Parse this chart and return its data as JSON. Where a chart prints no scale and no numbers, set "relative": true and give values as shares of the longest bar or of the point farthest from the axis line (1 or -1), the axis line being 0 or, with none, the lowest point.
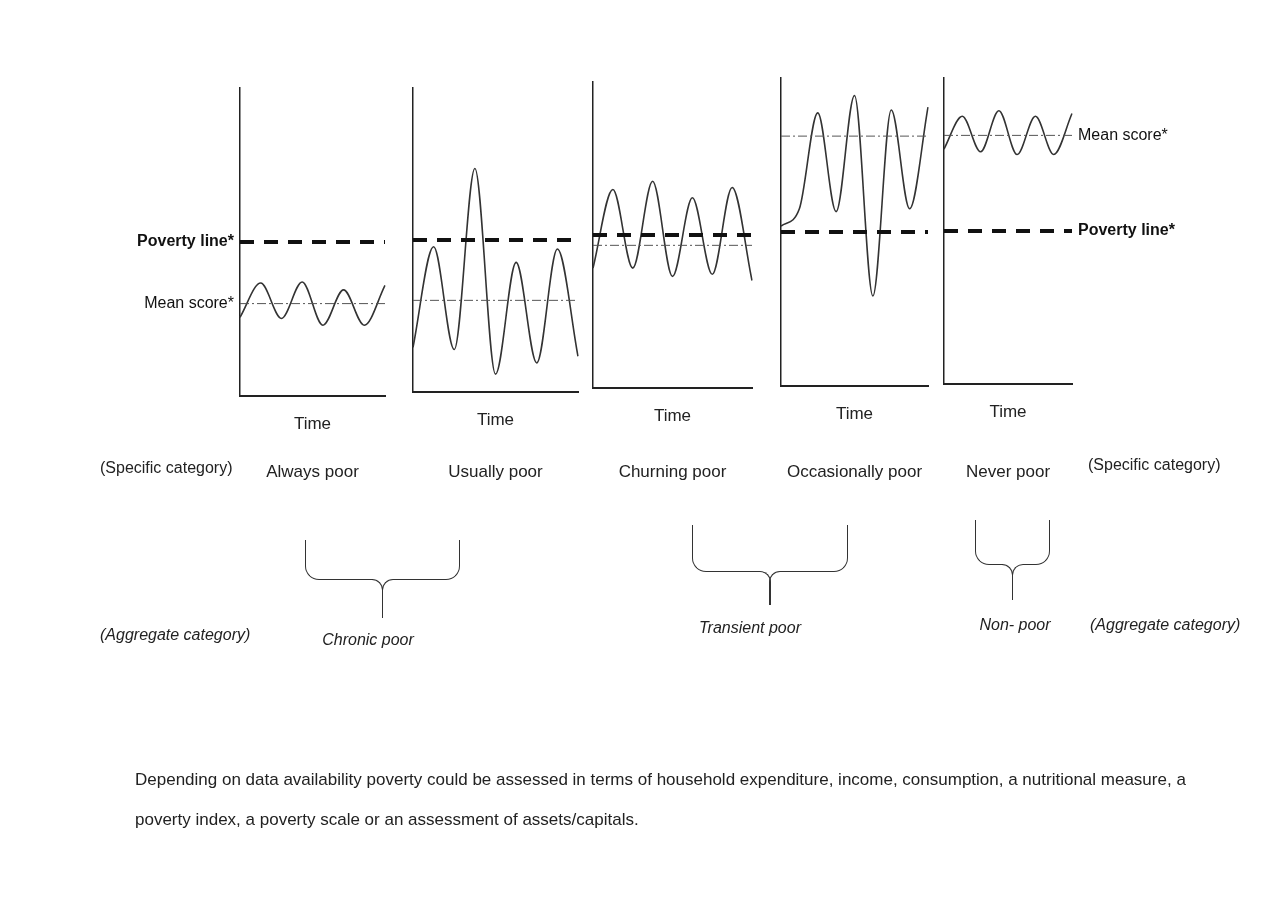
{
  "chart_data": [
    {
      "type": "line",
      "relative": true,
      "title": "Always poor",
      "xlabel": "Time",
      "categories": [
        null,
        null,
        null,
        null,
        null,
        null,
        null,
        null
      ],
      "color": "#333333",
      "values": [
        0.69,
        0.99,
        0.68,
        1.0,
        0.62,
        0.93,
        0.62,
        0.97
      ],
      "ref_lines": [
        {
          "axis": "y",
          "value": 1.35,
          "label": "Poverty line*",
          "line_style": "dashed",
          "color": "#111111"
        },
        {
          "axis": "y",
          "value": 0.81,
          "label": "Mean score*",
          "line_style": "dotted",
          "color": "#555555"
        }
      ]
    },
    {
      "type": "line",
      "relative": true,
      "title": "Usually poor",
      "xlabel": "Time",
      "categories": [
        null,
        null,
        null,
        null,
        null,
        null,
        null,
        null,
        null
      ],
      "color": "#333333",
      "values": [
        0.2,
        0.65,
        0.19,
        1.0,
        0.08,
        0.58,
        0.13,
        0.64,
        0.16
      ],
      "ref_lines": [
        {
          "axis": "y",
          "value": 0.68,
          "line_style": "dashed",
          "color": "#111111"
        },
        {
          "axis": "y",
          "value": 0.41,
          "line_style": "dotted",
          "color": "#555555"
        }
      ]
    },
    {
      "type": "line",
      "relative": true,
      "title": "Churning poor",
      "xlabel": "Time",
      "categories": [
        null,
        null,
        null,
        null,
        null,
        null,
        null,
        null,
        null
      ],
      "color": "#333333",
      "values": [
        0.58,
        0.96,
        0.58,
        1.0,
        0.54,
        0.92,
        0.55,
        0.97,
        0.52
      ],
      "ref_lines": [
        {
          "axis": "y",
          "value": 0.74,
          "line_style": "dashed",
          "color": "#111111"
        },
        {
          "axis": "y",
          "value": 0.69,
          "line_style": "dotted",
          "color": "#555555"
        }
      ]
    },
    {
      "type": "line",
      "relative": true,
      "title": "Occasionally poor",
      "xlabel": "Time",
      "categories": [
        null,
        null,
        null,
        null,
        null,
        null,
        null,
        null,
        null
      ],
      "color": "#333333",
      "values": [
        0.55,
        0.61,
        0.94,
        0.6,
        1.0,
        0.31,
        0.95,
        0.61,
        0.96
      ],
      "ref_lines": [
        {
          "axis": "y",
          "value": 0.53,
          "line_style": "dashed",
          "color": "#111111"
        },
        {
          "axis": "y",
          "value": 0.86,
          "line_style": "dotted",
          "color": "#555555"
        }
      ]
    },
    {
      "type": "line",
      "relative": true,
      "title": "Never poor",
      "xlabel": "Time",
      "categories": [
        null,
        null,
        null,
        null,
        null,
        null,
        null,
        null
      ],
      "color": "#333333",
      "values": [
        0.86,
        0.98,
        0.85,
        1.0,
        0.84,
        0.98,
        0.84,
        0.99
      ],
      "ref_lines": [
        {
          "axis": "y",
          "value": 0.56,
          "label": "Poverty line*",
          "line_style": "dashed",
          "color": "#111111"
        },
        {
          "axis": "y",
          "value": 0.91,
          "label": "Mean score*",
          "line_style": "dotted",
          "color": "#555555"
        }
      ]
    },
    {
      "type": "other",
      "annotations": [
        "(Specific category)",
        "(Specific category)",
        "(Aggregate category)",
        "Chronic poor",
        "Transient poor",
        "Non- poor",
        "(Aggregate category)",
        "Depending on data availability poverty could be assessed in terms of household expenditure, income, consumption, a nutritional measure, a poverty index, a poverty scale or an assessment of assets/capitals."
      ]
    }
  ]
}
